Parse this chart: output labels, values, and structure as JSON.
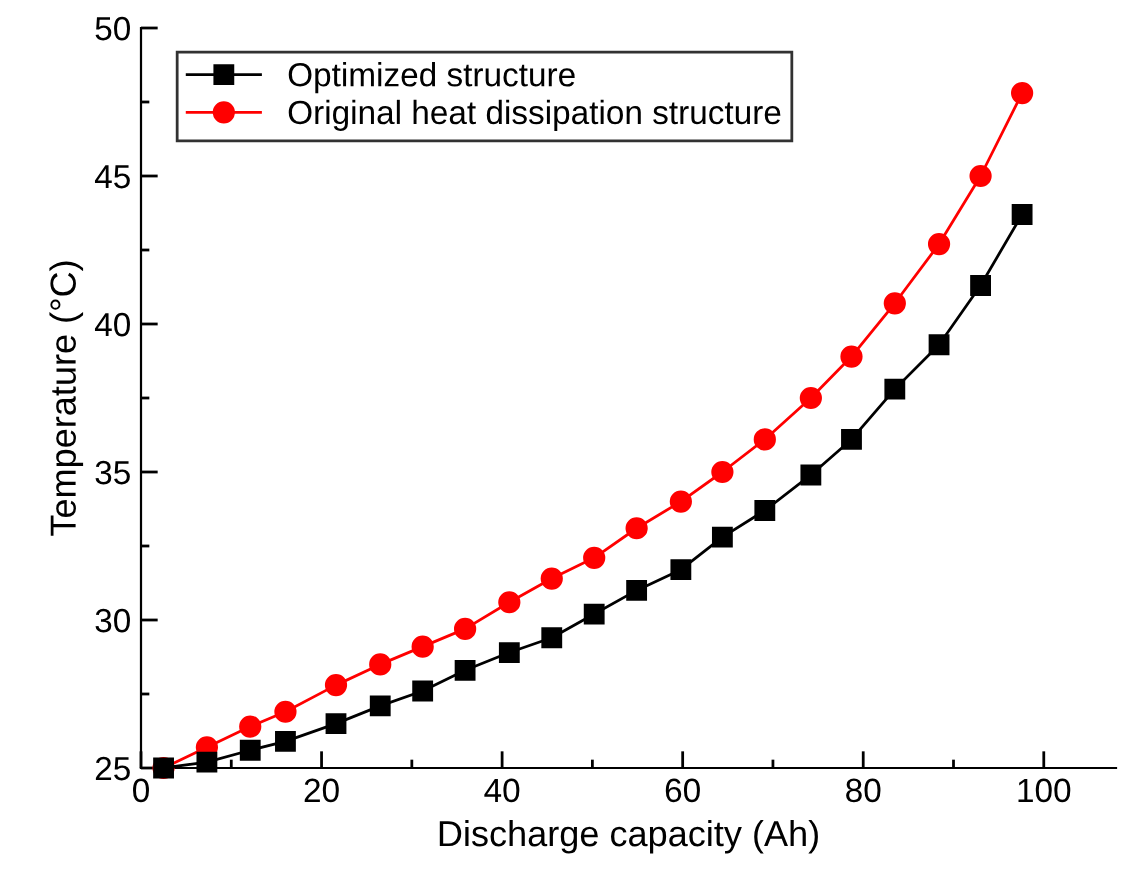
{
  "chart_data": {
    "type": "line",
    "xlabel": "Discharge capacity (Ah)",
    "ylabel": "Temperature (°C)",
    "x": [
      2.5,
      7.3,
      12.1,
      16,
      21.6,
      26.5,
      31.2,
      35.9,
      40.8,
      45.5,
      50.2,
      54.9,
      59.8,
      64.4,
      69.1,
      74.2,
      78.7,
      83.5,
      88.4,
      93,
      97.6
    ],
    "series": [
      {
        "name": "Optimized structure",
        "color": "#000000",
        "marker": "square",
        "values": [
          25,
          25.2,
          25.6,
          25.9,
          26.5,
          27.1,
          27.6,
          28.3,
          28.9,
          29.4,
          30.2,
          31.0,
          31.7,
          32.8,
          33.7,
          34.9,
          36.1,
          37.8,
          39.3,
          41.3,
          43.7
        ]
      },
      {
        "name": "Original heat dissipation structure",
        "color": "#ff0000",
        "marker": "circle",
        "values": [
          25,
          25.7,
          26.4,
          26.9,
          27.8,
          28.5,
          29.1,
          29.7,
          30.6,
          31.4,
          32.1,
          33.1,
          34.0,
          35.0,
          36.1,
          37.5,
          38.9,
          40.7,
          42.7,
          45.0,
          47.8
        ]
      }
    ],
    "xlim": [
      0,
      108
    ],
    "ylim": [
      25,
      50
    ],
    "xticks": [
      0,
      {
        "value": 10,
        "label": null
      },
      20,
      {
        "value": 30,
        "label": null
      },
      40,
      {
        "value": 50,
        "label": null
      },
      60,
      {
        "value": 70,
        "label": null
      },
      80,
      {
        "value": 90,
        "label": null
      },
      100
    ],
    "yticks": [
      25,
      {
        "value": 27.5,
        "label": null
      },
      30,
      {
        "value": 32.5,
        "label": null
      },
      35,
      {
        "value": 37.5,
        "label": null
      },
      40,
      {
        "value": 42.5,
        "label": null
      },
      45,
      {
        "value": 47.5,
        "label": null
      },
      50
    ],
    "grid": false,
    "legend": "top left",
    "line_style": "solid"
  }
}
